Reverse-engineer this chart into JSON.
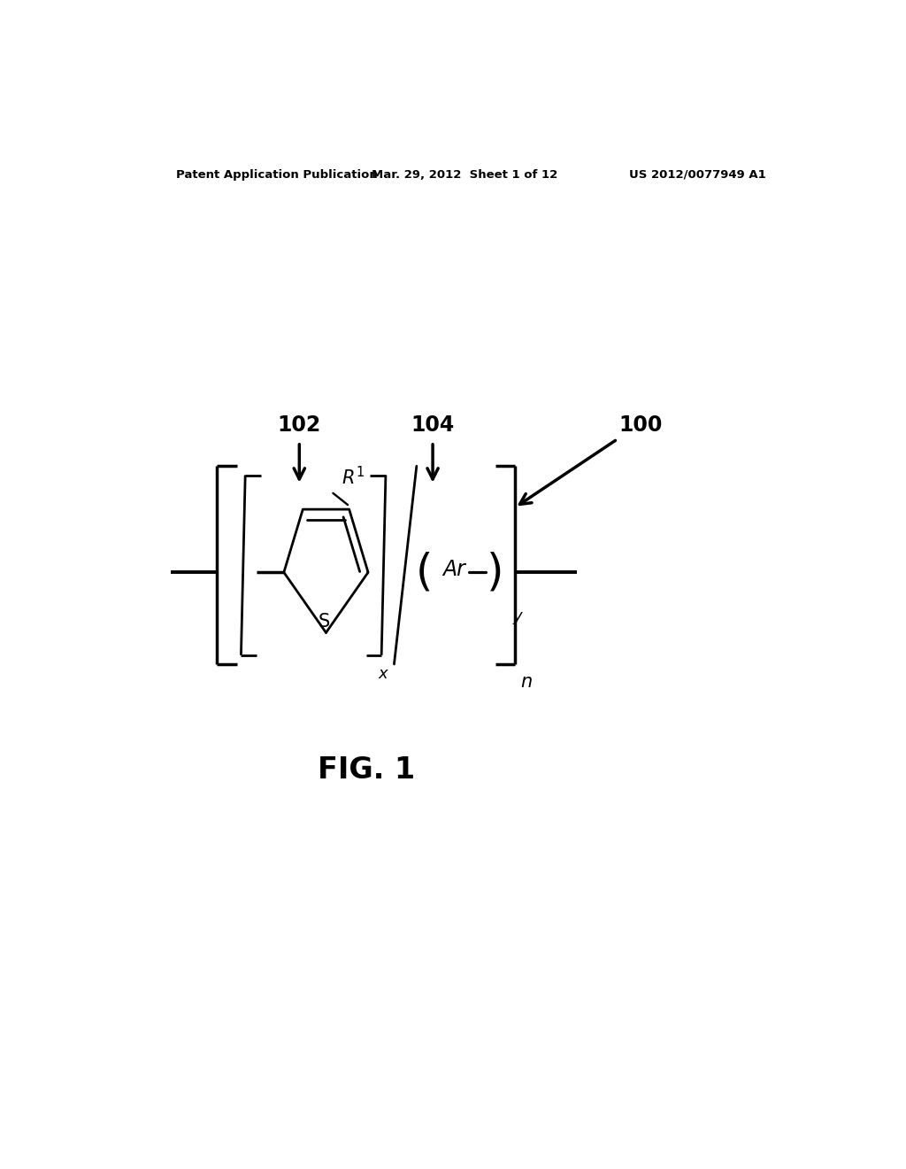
{
  "bg_color": "#ffffff",
  "header_left": "Patent Application Publication",
  "header_mid": "Mar. 29, 2012  Sheet 1 of 12",
  "header_right": "US 2012/0077949 A1",
  "text_color": "#000000",
  "line_color": "#000000",
  "label_100": "100",
  "label_102": "102",
  "label_104": "104",
  "fig_label": "FIG. 1"
}
